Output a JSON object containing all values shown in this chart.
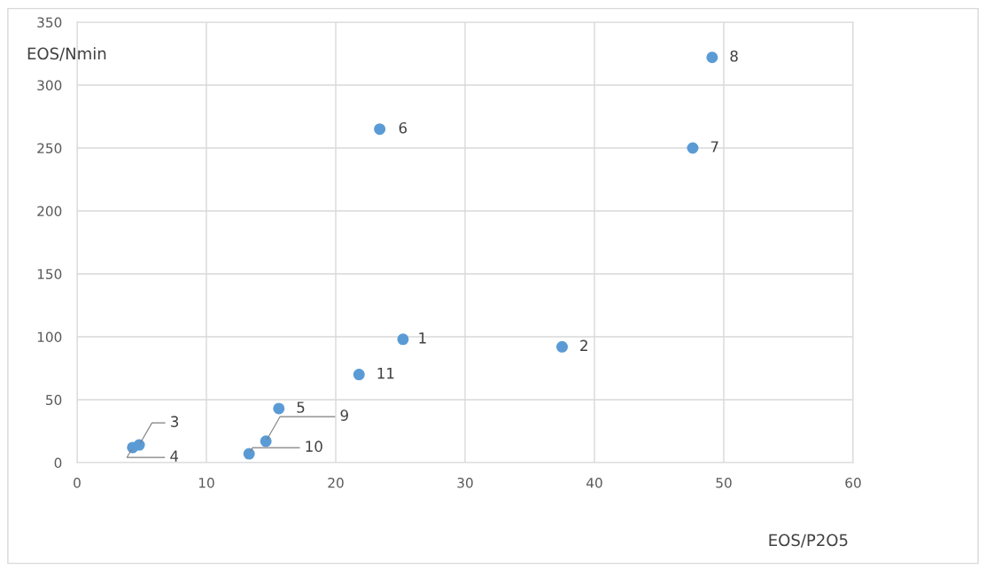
{
  "chart_data": {
    "type": "scatter",
    "xlabel": "EOS/P2O5",
    "ylabel": "EOS/Nmin",
    "x": [
      25.2,
      37.5,
      4.8,
      4.3,
      15.6,
      23.4,
      47.6,
      49.1,
      14.6,
      13.3,
      21.8
    ],
    "series": [
      {
        "color": "#5b9bd5",
        "values": [
          98,
          92,
          14,
          12,
          43,
          265,
          250,
          322,
          17,
          7,
          70
        ]
      }
    ],
    "annotations": [
      {
        "text": "1",
        "x": 25.2,
        "y": 98
      },
      {
        "text": "2",
        "x": 37.5,
        "y": 92
      },
      {
        "text": "3",
        "x": 4.8,
        "y": 14
      },
      {
        "text": "4",
        "x": 4.3,
        "y": 12
      },
      {
        "text": "5",
        "x": 15.6,
        "y": 43
      },
      {
        "text": "6",
        "x": 23.4,
        "y": 265
      },
      {
        "text": "7",
        "x": 47.6,
        "y": 250
      },
      {
        "text": "8",
        "x": 49.1,
        "y": 322
      },
      {
        "text": "9",
        "x": 14.6,
        "y": 17
      },
      {
        "text": "10",
        "x": 13.3,
        "y": 7
      },
      {
        "text": "11",
        "x": 21.8,
        "y": 70
      }
    ],
    "xlim": [
      0,
      60
    ],
    "xticks": [
      0,
      10,
      20,
      30,
      40,
      50,
      60
    ],
    "ylim": [
      0,
      350
    ],
    "yticks": [
      0,
      50,
      100,
      150,
      200,
      250,
      300,
      350
    ],
    "grid": true,
    "marker": "circle",
    "legend": false
  }
}
